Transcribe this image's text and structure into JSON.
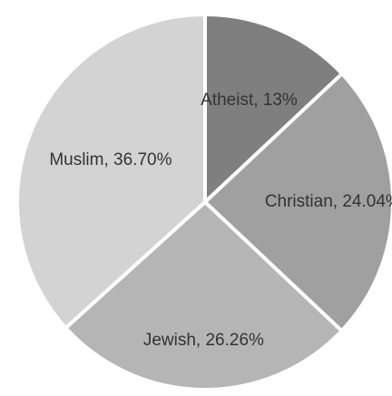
{
  "chart_data": {
    "type": "pie",
    "categories": [
      "Atheist",
      "Christian",
      "Jewish",
      "Muslim"
    ],
    "values": [
      13,
      24.04,
      26.26,
      36.7
    ],
    "data_labels": [
      "Atheist, 13%",
      "Christian, 24.04%",
      "Jewish, 26.26%",
      "Muslim, 36.70%"
    ],
    "colors": [
      "#7f7f7f",
      "#a0a0a0",
      "#b5b5b5",
      "#d3d3d3"
    ],
    "start_angle_deg": 0,
    "direction": "clockwise",
    "legend": "none",
    "title": ""
  }
}
